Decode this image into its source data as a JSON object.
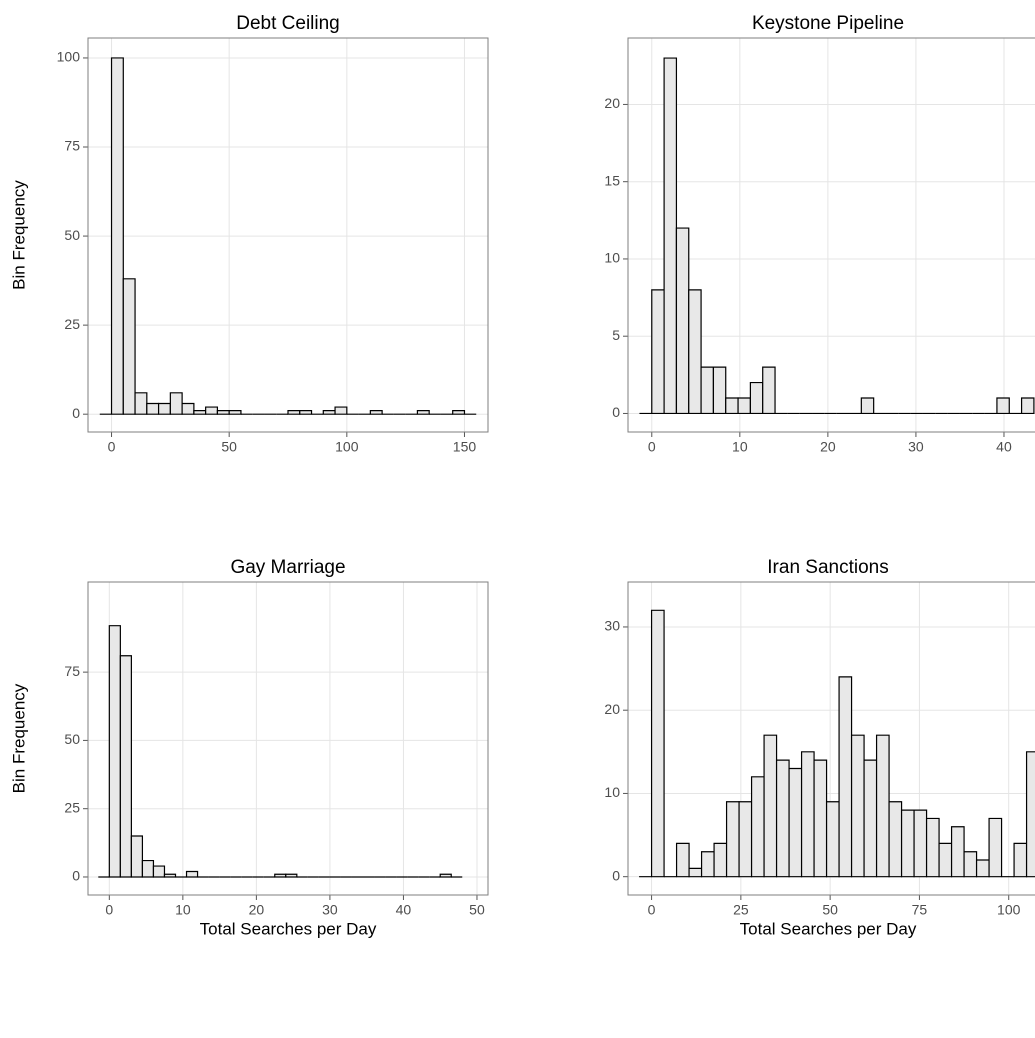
{
  "chart_data": [
    {
      "type": "histogram",
      "title": "Debt Ceiling",
      "ylabel": "Bin Frequency",
      "color": "#e8e8e8",
      "bins": [
        -5,
        0,
        5,
        10,
        15,
        20,
        25,
        30,
        35,
        40,
        45,
        50,
        55,
        60,
        65,
        70,
        75,
        80,
        85,
        90,
        95,
        100,
        105,
        110,
        115,
        120,
        125,
        130,
        135,
        140,
        145,
        150,
        155
      ],
      "values": [
        0,
        100,
        38,
        6,
        3,
        3,
        6,
        3,
        1,
        2,
        1,
        1,
        0,
        0,
        0,
        0,
        1,
        1,
        0,
        1,
        2,
        0,
        0,
        1,
        0,
        0,
        0,
        1,
        0,
        0,
        1,
        0
      ],
      "xlim": [
        -10,
        160
      ],
      "ylim": [
        -5,
        105.6
      ],
      "xticks": [
        0,
        50,
        100,
        150
      ],
      "yticks": [
        0,
        25,
        50,
        75,
        100
      ],
      "grid": true
    },
    {
      "type": "histogram",
      "title": "Keystone Pipeline",
      "color": "#e8e8e8",
      "bins": [
        -1.4,
        0,
        1.4,
        2.8,
        4.2,
        5.6,
        7,
        8.4,
        9.8,
        11.2,
        12.6,
        14,
        15.4,
        16.8,
        18.2,
        19.6,
        21,
        22.4,
        23.8,
        25.2,
        26.6,
        28,
        29.4,
        30.8,
        32.2,
        33.6,
        35,
        36.4,
        37.8,
        39.2,
        40.6,
        42,
        43.4
      ],
      "values": [
        0,
        8,
        23,
        12,
        8,
        3,
        3,
        1,
        1,
        2,
        3,
        0,
        0,
        0,
        0,
        0,
        0,
        0,
        1,
        0,
        0,
        0,
        0,
        0,
        0,
        0,
        0,
        0,
        0,
        1,
        0,
        1
      ],
      "xlim": [
        -2.7,
        45
      ],
      "ylim": [
        -1.2,
        24.3
      ],
      "xticks": [
        0,
        10,
        20,
        30,
        40
      ],
      "yticks": [
        0,
        5,
        10,
        15,
        20
      ],
      "grid": true
    },
    {
      "type": "histogram",
      "title": "Gay Marriage",
      "ylabel": "Bin Frequency",
      "xlabel": "Total Searches per Day",
      "color": "#e8e8e8",
      "bins": [
        -1.5,
        0,
        1.5,
        3,
        4.5,
        6,
        7.5,
        9,
        10.5,
        12,
        13.5,
        15,
        16.5,
        18,
        19.5,
        21,
        22.5,
        24,
        25.5,
        27,
        28.5,
        30,
        31.5,
        33,
        34.5,
        36,
        37.5,
        39,
        40.5,
        42,
        43.5,
        45,
        46.5,
        48
      ],
      "values": [
        0,
        92,
        81,
        15,
        6,
        4,
        1,
        0,
        2,
        0,
        0,
        0,
        0,
        0,
        0,
        0,
        1,
        1,
        0,
        0,
        0,
        0,
        0,
        0,
        0,
        0,
        0,
        0,
        0,
        0,
        0,
        1,
        0
      ],
      "xlim": [
        -2.9,
        51.5
      ],
      "ylim": [
        -6.6,
        108
      ],
      "xticks": [
        0,
        10,
        20,
        30,
        40,
        50
      ],
      "yticks": [
        0,
        25,
        50,
        75
      ],
      "grid": true
    },
    {
      "type": "histogram",
      "title": "Iran Sanctions",
      "xlabel": "Total Searches per Day",
      "color": "#e8e8e8",
      "bins": [
        -3.5,
        0,
        3.5,
        7,
        10.5,
        14,
        17.5,
        21,
        24.5,
        28,
        31.5,
        35,
        38.5,
        42,
        45.5,
        49,
        52.5,
        56,
        59.5,
        63,
        66.5,
        70,
        73.5,
        77,
        80.5,
        84,
        87.5,
        91,
        94.5,
        98,
        101.5,
        105,
        108.5
      ],
      "values": [
        0,
        32,
        0,
        4,
        1,
        3,
        4,
        9,
        9,
        12,
        17,
        14,
        13,
        15,
        14,
        9,
        24,
        17,
        14,
        17,
        9,
        8,
        8,
        7,
        4,
        6,
        3,
        2,
        7,
        0,
        4,
        15
      ],
      "xlim": [
        -6.6,
        111
      ],
      "ylim": [
        -2.2,
        35.4
      ],
      "xticks": [
        0,
        25,
        50,
        75,
        100
      ],
      "yticks": [
        0,
        10,
        20,
        30
      ],
      "grid": true
    }
  ]
}
